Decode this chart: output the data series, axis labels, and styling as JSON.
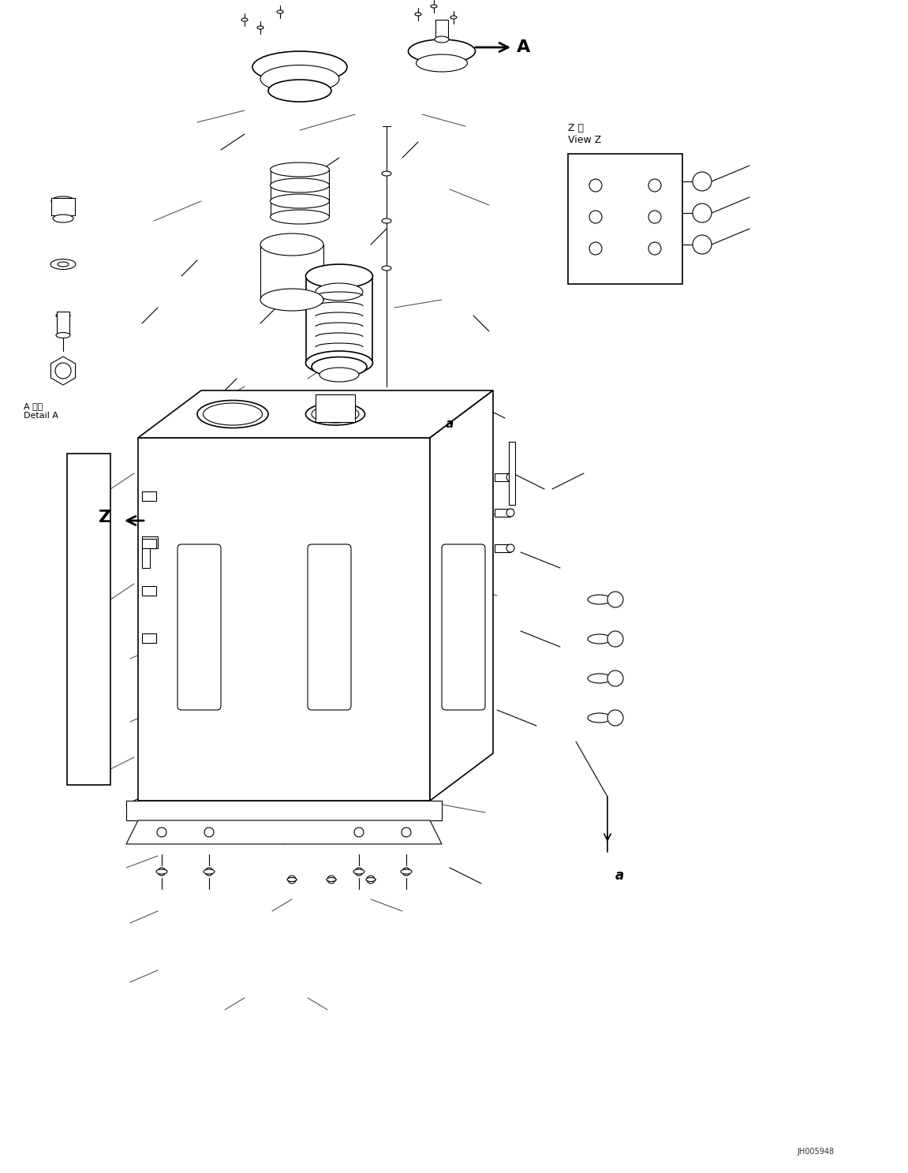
{
  "title": "",
  "background_color": "#ffffff",
  "line_color": "#000000",
  "figure_width": 11.51,
  "figure_height": 14.87,
  "dpi": 100,
  "watermark": "JH005948",
  "label_a": "A",
  "label_z": "Z",
  "label_a_detail": "A 詳細\nDetail A",
  "label_z_view": "Z 視\nView Z",
  "label_small_a": "a",
  "arrow_label_a": "A"
}
